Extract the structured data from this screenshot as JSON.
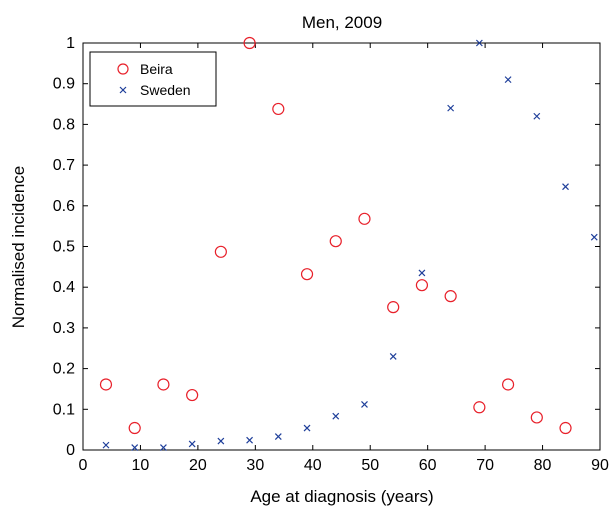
{
  "chart_data": {
    "type": "scatter",
    "title": "Men, 2009",
    "xlabel": "Age at diagnosis (years)",
    "ylabel": "Normalised incidence",
    "xlim": [
      0,
      90
    ],
    "ylim": [
      0,
      1
    ],
    "xticks": [
      0,
      10,
      20,
      30,
      40,
      50,
      60,
      70,
      80,
      90
    ],
    "yticks": [
      0,
      0.1,
      0.2,
      0.3,
      0.4,
      0.5,
      0.6,
      0.7,
      0.8,
      0.9,
      1
    ],
    "grid": false,
    "legend_position": "top-left",
    "series": [
      {
        "name": "Beira",
        "marker": "circle",
        "color": "#e8202a",
        "x": [
          4,
          9,
          14,
          19,
          24,
          29,
          34,
          39,
          44,
          49,
          54,
          59,
          64,
          69,
          74,
          79,
          84
        ],
        "y": [
          0.161,
          0.054,
          0.161,
          0.135,
          0.487,
          1.0,
          0.838,
          0.432,
          0.513,
          0.568,
          0.351,
          0.405,
          0.378,
          0.105,
          0.161,
          0.08,
          0.054
        ]
      },
      {
        "name": "Sweden",
        "marker": "x",
        "color": "#1f3f9a",
        "x": [
          4,
          9,
          14,
          19,
          24,
          29,
          34,
          39,
          44,
          49,
          54,
          59,
          64,
          69,
          74,
          79,
          84,
          89
        ],
        "y": [
          0.012,
          0.006,
          0.006,
          0.015,
          0.022,
          0.024,
          0.033,
          0.054,
          0.083,
          0.112,
          0.23,
          0.435,
          0.84,
          1.0,
          0.91,
          0.82,
          0.647,
          0.523
        ]
      }
    ]
  }
}
